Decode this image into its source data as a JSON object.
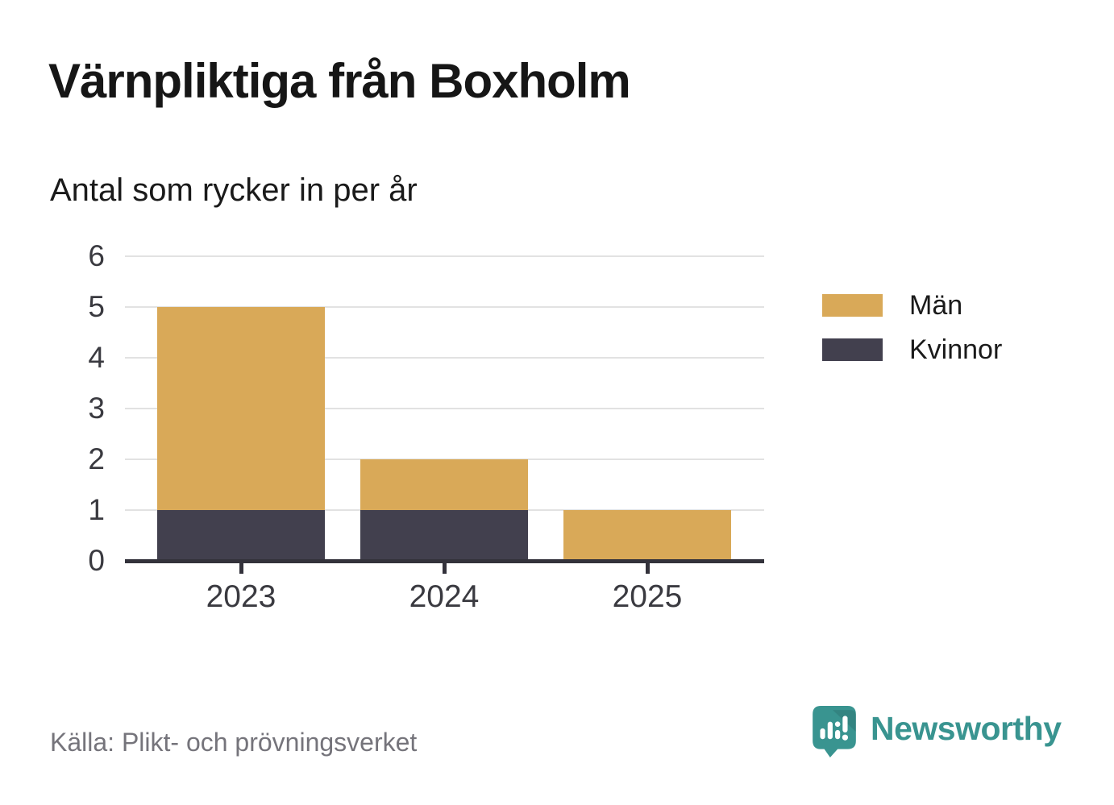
{
  "title": "Värnpliktiga från Boxholm",
  "subtitle": "Antal som rycker in per år",
  "source": "Källa: Plikt- och prövningsverket",
  "brand": {
    "name": "Newsworthy",
    "color": "#399490",
    "icon": "newsworthy-speech-bubble-bar-chart-icon"
  },
  "colors": {
    "men": "#d9a958",
    "women": "#42404e",
    "grid": "#e2e2e2",
    "axis": "#33323b",
    "tick_text": "#3a3a40",
    "source_text": "#75747b",
    "title_text": "#161616"
  },
  "chart_data": {
    "type": "bar",
    "stacked": true,
    "title": "Värnpliktiga från Boxholm",
    "subtitle": "Antal som rycker in per år",
    "categories": [
      "2023",
      "2024",
      "2025"
    ],
    "series": [
      {
        "name": "Män",
        "color": "#d9a958",
        "values": [
          4,
          1,
          1
        ]
      },
      {
        "name": "Kvinnor",
        "color": "#42404e",
        "values": [
          1,
          1,
          0
        ]
      }
    ],
    "totals": [
      5,
      2,
      1
    ],
    "xlabel": "",
    "ylabel": "",
    "ylim": [
      0,
      6
    ],
    "yticks": [
      0,
      1,
      2,
      3,
      4,
      5,
      6
    ],
    "grid": true,
    "legend_position": "right"
  },
  "legend": {
    "items": [
      {
        "label": "Män",
        "color": "#d9a958"
      },
      {
        "label": "Kvinnor",
        "color": "#42404e"
      }
    ]
  }
}
